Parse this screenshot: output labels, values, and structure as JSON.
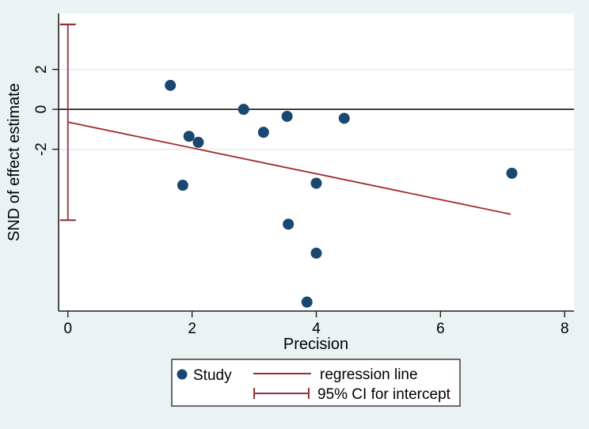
{
  "figure": {
    "kind": "stata-funnel-egger-plot",
    "window_title": ""
  },
  "colors": {
    "background": "#eaf2f3",
    "plot_background": "#ffffff",
    "gridline": "#dce9ec",
    "axis": "#1f1f1f",
    "zero_line": "#000000",
    "navy": "#1a476f",
    "maroon": "#90353b",
    "regression": "#a12a2e",
    "legend_border": "#3c3c3c",
    "legend_background": "#ffffff"
  },
  "chart_data": {
    "type": "scatter",
    "title": "",
    "xlabel": "Precision",
    "ylabel": "SND of effect estimate",
    "x_ticks": [
      0,
      2,
      4,
      6,
      8
    ],
    "y_ticks": [
      2,
      0,
      -2
    ],
    "xlim": [
      -0.15,
      8.15
    ],
    "ylim": [
      -10.1,
      4.8
    ],
    "grid": "horizontal gridlines at y ticks, light blue",
    "reference_line_y": 0,
    "legend_position": "bottom-center",
    "series": [
      {
        "name": "Study",
        "type": "scatter",
        "color": "#1a476f",
        "points": [
          [
            1.65,
            1.2
          ],
          [
            2.83,
            0.0
          ],
          [
            3.53,
            -0.35
          ],
          [
            4.45,
            -0.45
          ],
          [
            1.95,
            -1.35
          ],
          [
            2.1,
            -1.65
          ],
          [
            3.15,
            -1.15
          ],
          [
            1.85,
            -3.8
          ],
          [
            4.0,
            -3.7
          ],
          [
            7.15,
            -3.2
          ],
          [
            3.55,
            -5.75
          ],
          [
            4.0,
            -7.2
          ],
          [
            3.85,
            -9.65
          ]
        ]
      },
      {
        "name": "regression line",
        "type": "line",
        "color": "#a12a2e",
        "x": [
          0,
          7.13
        ],
        "y": [
          -0.64,
          -5.25
        ]
      },
      {
        "name": "95% CI for intercept",
        "type": "errorbar",
        "color": "#90353b",
        "x": 0,
        "low": -5.55,
        "high": 4.25
      }
    ]
  }
}
